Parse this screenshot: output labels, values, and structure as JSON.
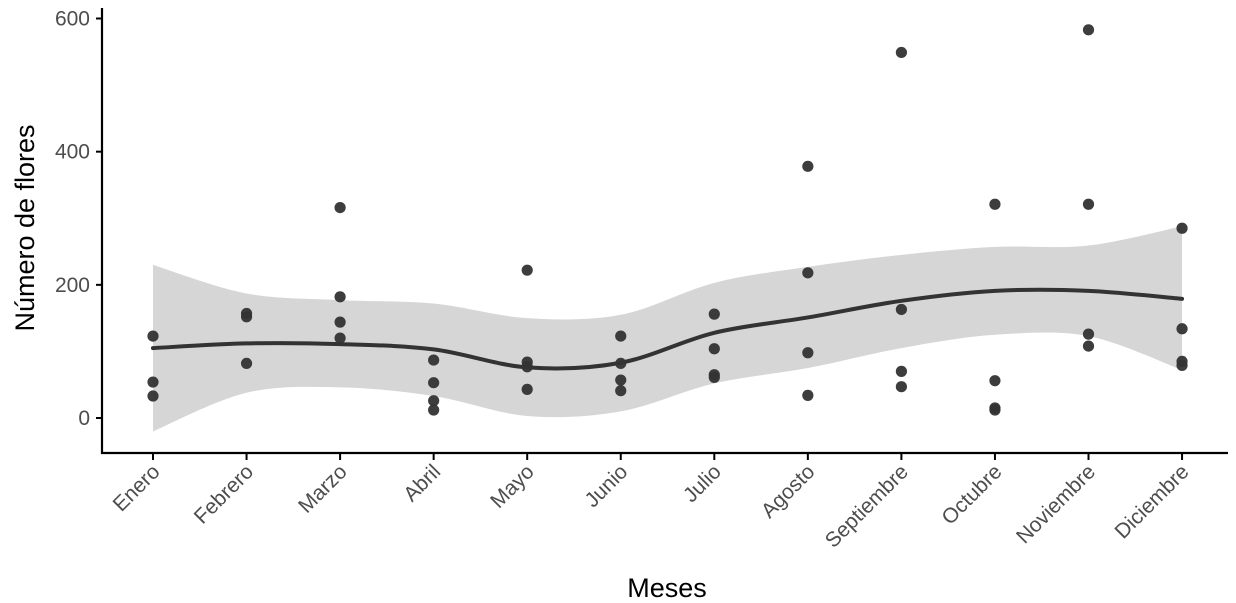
{
  "chart_data": {
    "type": "scatter",
    "xlabel": "Meses",
    "ylabel": "Número de flores",
    "categories": [
      "Enero",
      "Febrero",
      "Marzo",
      "Abril",
      "Mayo",
      "Junio",
      "Julio",
      "Agosto",
      "Septiembre",
      "Octubre",
      "Noviembre",
      "Diciembre"
    ],
    "y_ticks": [
      0,
      200,
      400,
      600
    ],
    "ylim": [
      -55,
      612
    ],
    "grid": false,
    "legend": "none",
    "points": [
      {
        "x": "Enero",
        "y": 123
      },
      {
        "x": "Enero",
        "y": 54
      },
      {
        "x": "Enero",
        "y": 33
      },
      {
        "x": "Febrero",
        "y": 157
      },
      {
        "x": "Febrero",
        "y": 152
      },
      {
        "x": "Febrero",
        "y": 82
      },
      {
        "x": "Marzo",
        "y": 316
      },
      {
        "x": "Marzo",
        "y": 182
      },
      {
        "x": "Marzo",
        "y": 144
      },
      {
        "x": "Marzo",
        "y": 120
      },
      {
        "x": "Abril",
        "y": 87
      },
      {
        "x": "Abril",
        "y": 53
      },
      {
        "x": "Abril",
        "y": 26
      },
      {
        "x": "Abril",
        "y": 12
      },
      {
        "x": "Mayo",
        "y": 222
      },
      {
        "x": "Mayo",
        "y": 84
      },
      {
        "x": "Mayo",
        "y": 77
      },
      {
        "x": "Mayo",
        "y": 43
      },
      {
        "x": "Junio",
        "y": 123
      },
      {
        "x": "Junio",
        "y": 82
      },
      {
        "x": "Junio",
        "y": 57
      },
      {
        "x": "Junio",
        "y": 41
      },
      {
        "x": "Julio",
        "y": 156
      },
      {
        "x": "Julio",
        "y": 104
      },
      {
        "x": "Julio",
        "y": 65
      },
      {
        "x": "Julio",
        "y": 61
      },
      {
        "x": "Agosto",
        "y": 378
      },
      {
        "x": "Agosto",
        "y": 218
      },
      {
        "x": "Agosto",
        "y": 98
      },
      {
        "x": "Agosto",
        "y": 34
      },
      {
        "x": "Septiembre",
        "y": 549
      },
      {
        "x": "Septiembre",
        "y": 163
      },
      {
        "x": "Septiembre",
        "y": 70
      },
      {
        "x": "Septiembre",
        "y": 47
      },
      {
        "x": "Octubre",
        "y": 321
      },
      {
        "x": "Octubre",
        "y": 56
      },
      {
        "x": "Octubre",
        "y": 15
      },
      {
        "x": "Octubre",
        "y": 12
      },
      {
        "x": "Noviembre",
        "y": 583
      },
      {
        "x": "Noviembre",
        "y": 321
      },
      {
        "x": "Noviembre",
        "y": 126
      },
      {
        "x": "Noviembre",
        "y": 108
      },
      {
        "x": "Diciembre",
        "y": 285
      },
      {
        "x": "Diciembre",
        "y": 134
      },
      {
        "x": "Diciembre",
        "y": 85
      },
      {
        "x": "Diciembre",
        "y": 79
      }
    ],
    "smooth_line": {
      "x": [
        0,
        1,
        2,
        3,
        4,
        5,
        6,
        7,
        8,
        9,
        10,
        11
      ],
      "y": [
        105,
        112,
        111,
        103,
        76,
        83,
        128,
        151,
        176,
        191,
        191,
        179
      ]
    },
    "smooth_band": {
      "x": [
        0,
        1,
        2,
        3,
        4,
        5,
        6,
        7,
        8,
        9,
        10,
        11
      ],
      "lower": [
        -20,
        38,
        46,
        33,
        3,
        10,
        52,
        75,
        105,
        125,
        123,
        72
      ],
      "upper": [
        230,
        187,
        177,
        172,
        150,
        155,
        203,
        227,
        245,
        257,
        259,
        288
      ]
    },
    "colors": {
      "points": "#333333",
      "line": "#333333",
      "band": "#d6d6d6",
      "axis": "#000000",
      "tick_label": "#4d4d4d"
    }
  }
}
